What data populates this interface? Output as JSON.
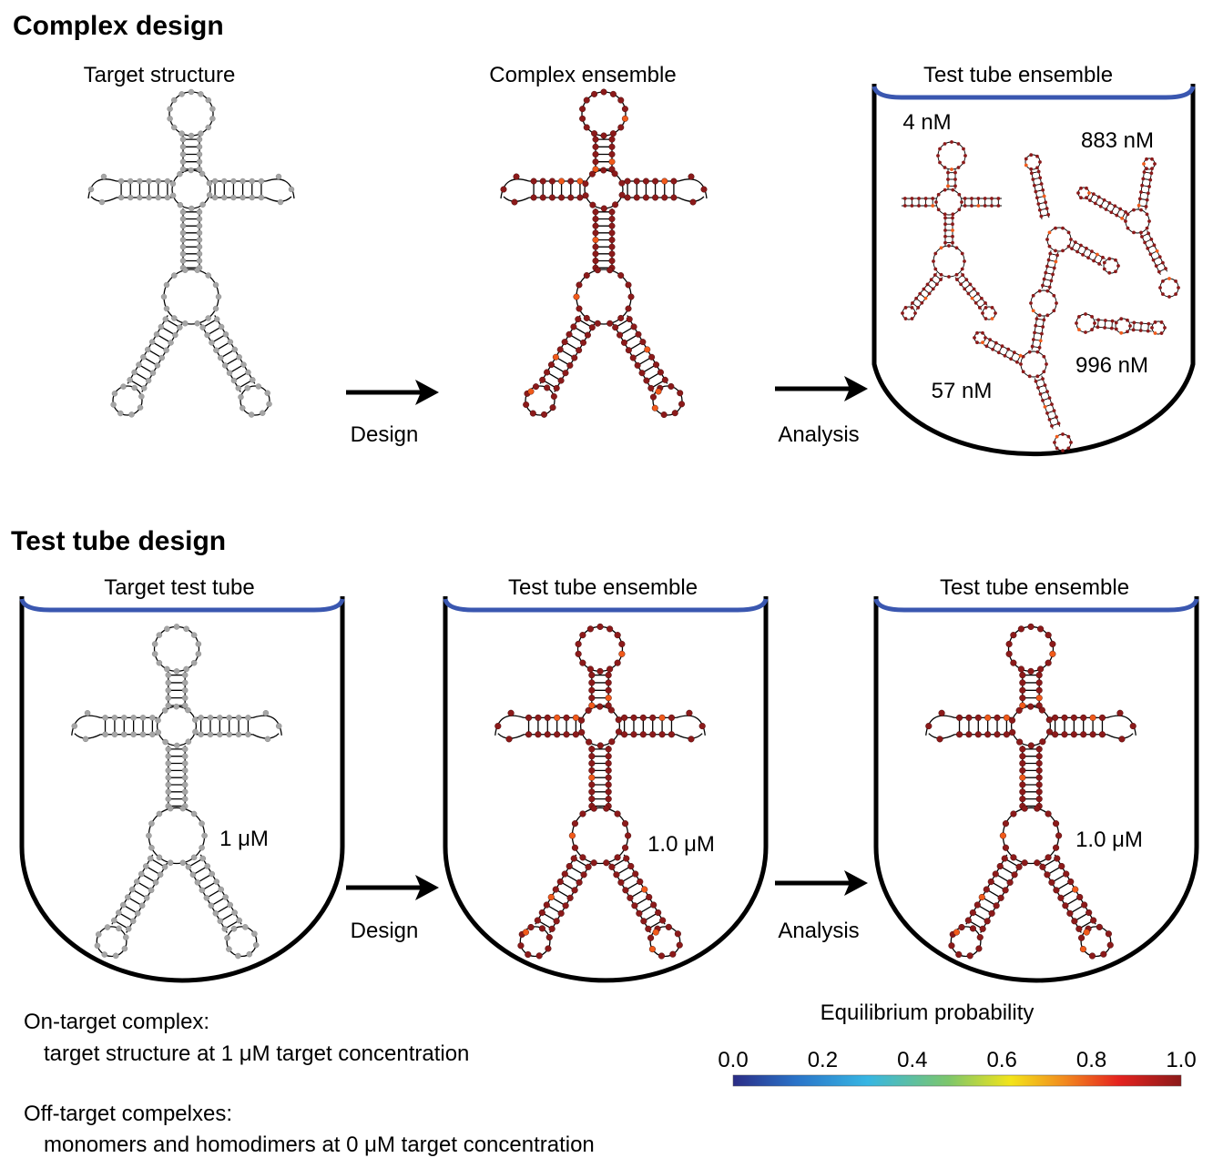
{
  "sections": {
    "complex": {
      "title": "Complex design"
    },
    "tube": {
      "title": "Test tube design"
    }
  },
  "panels": {
    "target_structure": {
      "label": "Target structure"
    },
    "complex_ensemble": {
      "label": "Complex ensemble"
    },
    "tube_ensemble_top": {
      "label": "Test tube ensemble"
    },
    "target_test_tube": {
      "label": "Target test tube",
      "conc": "1 μM"
    },
    "tube_ensemble_mid": {
      "label": "Test tube ensemble",
      "conc": "1.0 μM"
    },
    "tube_ensemble_right": {
      "label": "Test tube ensemble",
      "conc": "1.0 μM"
    }
  },
  "arrows": {
    "design_top": "Design",
    "analysis_top": "Analysis",
    "design_bottom": "Design",
    "analysis_bottom": "Analysis"
  },
  "concentrations": {
    "c1": "4 nM",
    "c2": "883 nM",
    "c3": "57 nM",
    "c4": "996 nM"
  },
  "notes": {
    "on_title": "On-target complex:",
    "on_desc": "target structure at 1 μM target concentration",
    "off_title": "Off-target compelxes:",
    "off_desc": "monomers and homodimers at 0 μM target concentration"
  },
  "colorbar": {
    "title": "Equilibrium probability",
    "ticks": [
      "0.0",
      "0.2",
      "0.4",
      "0.6",
      "0.8",
      "1.0"
    ],
    "colors": [
      "#2b2c86",
      "#2a73c8",
      "#37b6e3",
      "#7cc66c",
      "#f3e41a",
      "#f28a1f",
      "#e5231f",
      "#8b1a1a"
    ]
  },
  "colors": {
    "unpaired_gray": "#a6a6a6",
    "dark_red": "#8b1a1a",
    "orange": "#f05a1a",
    "tube_blue": "#3a57b0"
  }
}
